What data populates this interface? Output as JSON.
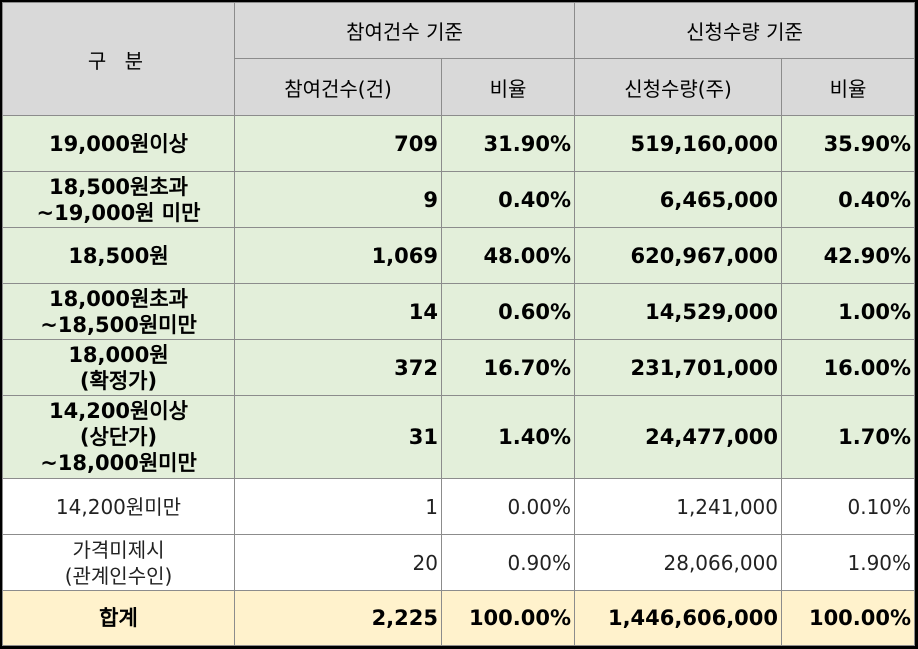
{
  "header": {
    "category": "구 분",
    "group_participation": "참여건수 기준",
    "group_quantity": "신청수량 기준",
    "col_participation": "참여건수(건)",
    "col_participation_ratio": "비율",
    "col_quantity": "신청수량(주)",
    "col_quantity_ratio": "비율"
  },
  "rows": [
    {
      "label": [
        "19,000원이상"
      ],
      "participation": "709",
      "participation_ratio": "31.90%",
      "quantity": "519,160,000",
      "quantity_ratio": "35.90%"
    },
    {
      "label": [
        "18,500원초과",
        "~19,000원 미만"
      ],
      "participation": "9",
      "participation_ratio": "0.40%",
      "quantity": "6,465,000",
      "quantity_ratio": "0.40%"
    },
    {
      "label": [
        "18,500원"
      ],
      "participation": "1,069",
      "participation_ratio": "48.00%",
      "quantity": "620,967,000",
      "quantity_ratio": "42.90%"
    },
    {
      "label": [
        "18,000원초과",
        "~18,500원미만"
      ],
      "participation": "14",
      "participation_ratio": "0.60%",
      "quantity": "14,529,000",
      "quantity_ratio": "1.00%"
    },
    {
      "label": [
        "18,000원",
        "(확정가)"
      ],
      "participation": "372",
      "participation_ratio": "16.70%",
      "quantity": "231,701,000",
      "quantity_ratio": "16.00%"
    },
    {
      "label": [
        "14,200원이상",
        "(상단가)",
        "~18,000원미만"
      ],
      "participation": "31",
      "participation_ratio": "1.40%",
      "quantity": "24,477,000",
      "quantity_ratio": "1.70%"
    },
    {
      "label": [
        "14,200원미만"
      ],
      "participation": "1",
      "participation_ratio": "0.00%",
      "quantity": "1,241,000",
      "quantity_ratio": "0.10%"
    },
    {
      "label": [
        "가격미제시",
        "(관계인수인)"
      ],
      "participation": "20",
      "participation_ratio": "0.90%",
      "quantity": "28,066,000",
      "quantity_ratio": "1.90%"
    }
  ],
  "total": {
    "label": "합계",
    "participation": "2,225",
    "participation_ratio": "100.00%",
    "quantity": "1,446,606,000",
    "quantity_ratio": "100.00%"
  }
}
